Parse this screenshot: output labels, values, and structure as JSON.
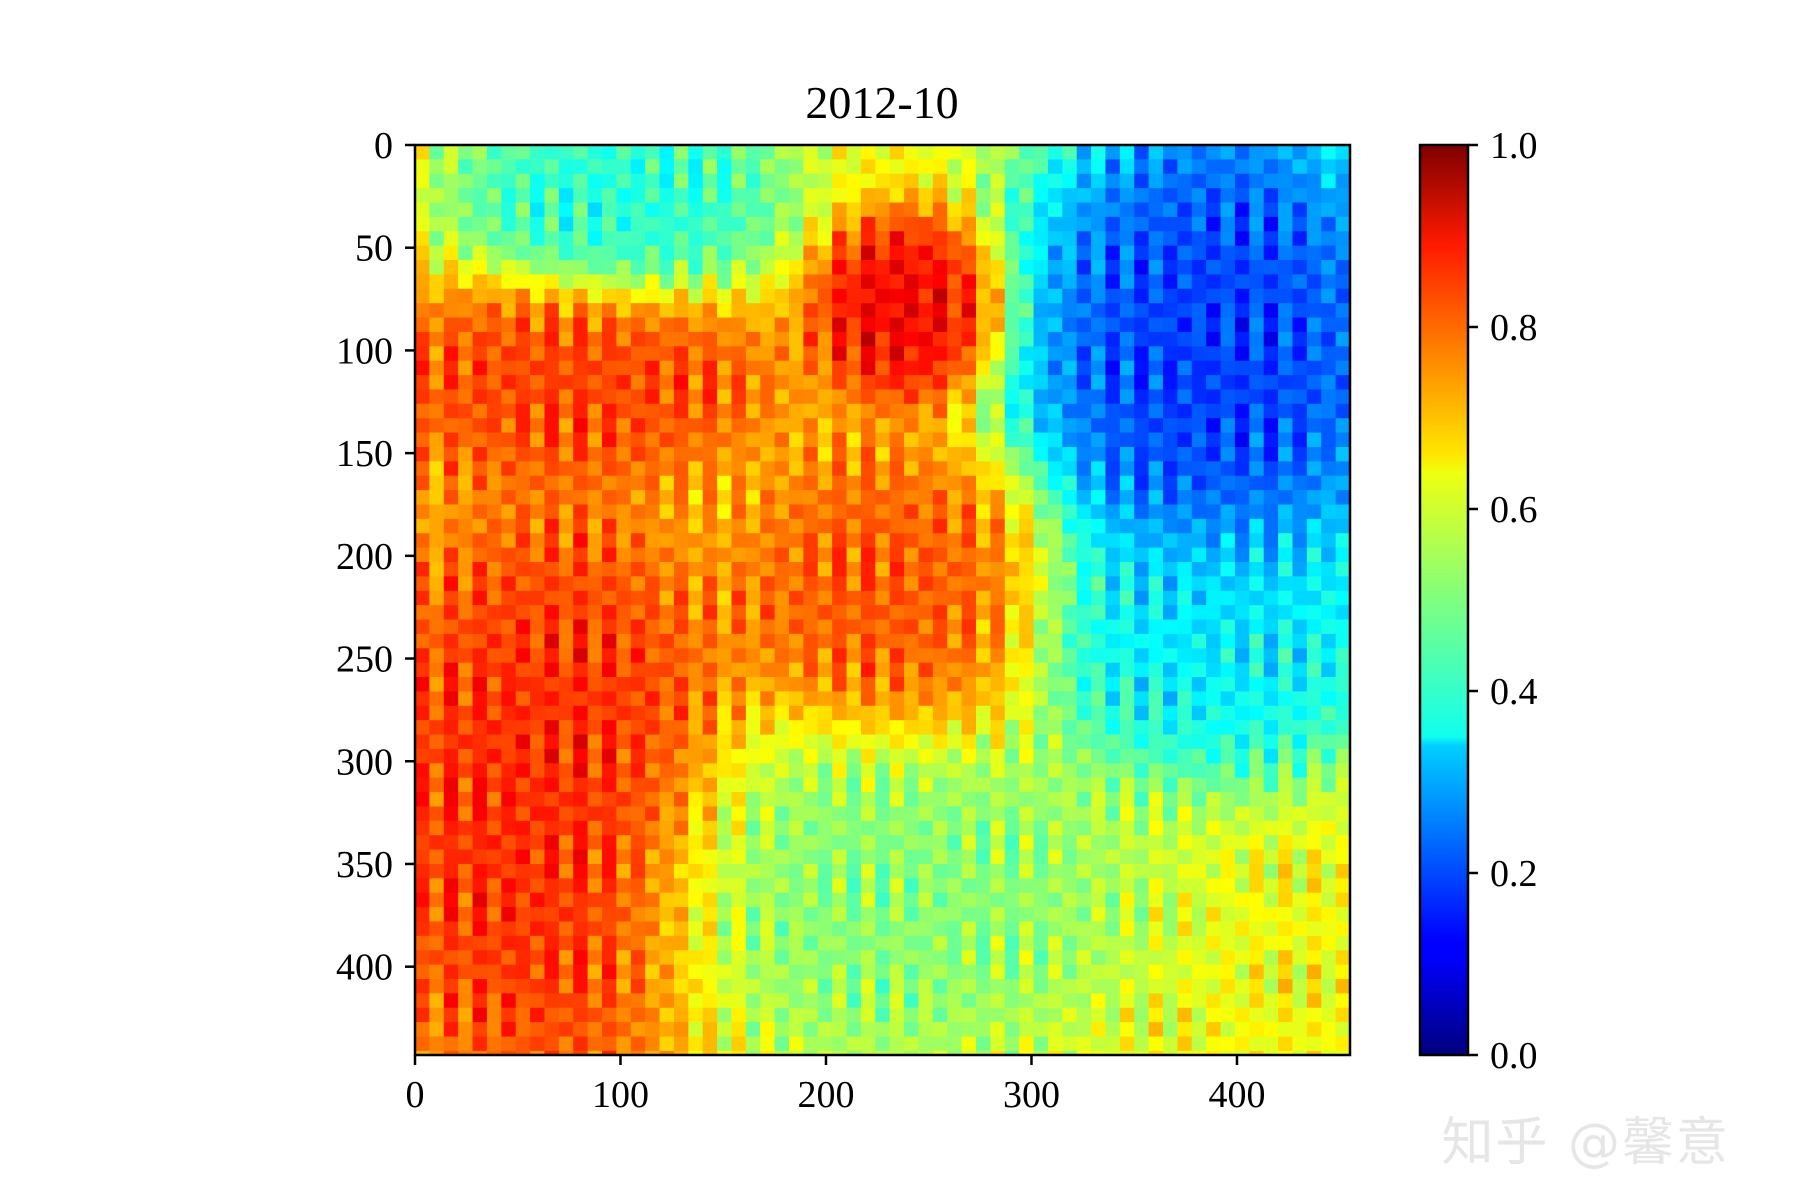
{
  "chart_data": {
    "type": "heatmap",
    "title": "2012-10",
    "xlabel": "",
    "ylabel": "",
    "x_ticks": [
      0,
      100,
      200,
      300,
      400
    ],
    "y_ticks": [
      0,
      50,
      100,
      150,
      200,
      250,
      300,
      350,
      400
    ],
    "xlim": [
      0,
      455
    ],
    "ylim": [
      443,
      0
    ],
    "colormap": "jet",
    "colorbar": {
      "vmin": 0.0,
      "vmax": 1.0,
      "ticks": [
        "0.0",
        "0.2",
        "0.4",
        "0.6",
        "0.8",
        "1.0"
      ]
    },
    "grid": false,
    "regions": [
      {
        "label": "high values (red/orange)",
        "x": [
          0,
          130
        ],
        "y": [
          200,
          443
        ],
        "value": 0.85
      },
      {
        "label": "high values (orange band)",
        "x": [
          0,
          150
        ],
        "y": [
          90,
          140
        ],
        "value": 0.82
      },
      {
        "label": "hot spot",
        "x": [
          220,
          260
        ],
        "y": [
          60,
          100
        ],
        "value": 0.9
      },
      {
        "label": "orange patch",
        "x": [
          180,
          290
        ],
        "y": [
          170,
          270
        ],
        "value": 0.8
      },
      {
        "label": "low values (blue)",
        "x": [
          320,
          455
        ],
        "y": [
          0,
          200
        ],
        "value": 0.15
      },
      {
        "label": "low values (light blue)",
        "x": [
          320,
          455
        ],
        "y": [
          200,
          280
        ],
        "value": 0.35
      },
      {
        "label": "top cyan patch",
        "x": [
          50,
          150
        ],
        "y": [
          0,
          50
        ],
        "value": 0.4
      },
      {
        "label": "lower middle green/cyan",
        "x": [
          130,
          320
        ],
        "y": [
          300,
          420
        ],
        "value": 0.5
      }
    ]
  },
  "watermark": "知乎 @馨意"
}
